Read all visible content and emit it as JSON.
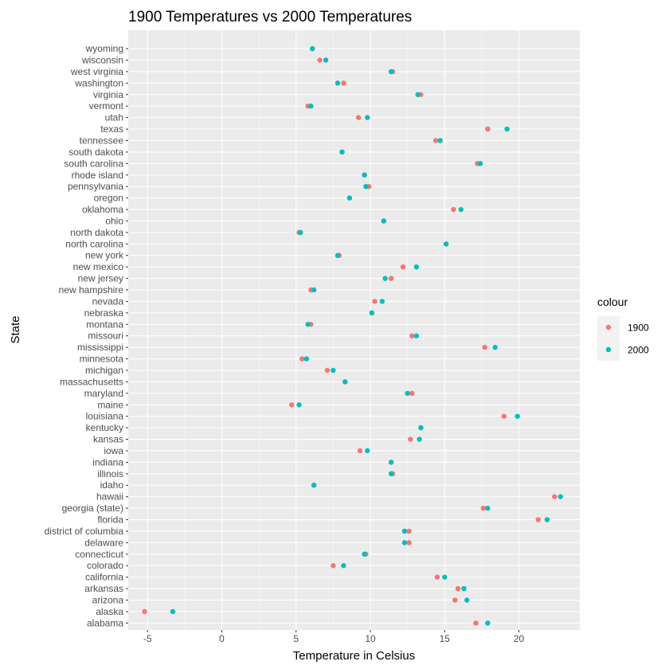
{
  "chart_data": {
    "type": "scatter",
    "title": "1900 Temperatures vs 2000 Temperatures",
    "xlabel": "Temperature in Celsius",
    "ylabel": "State",
    "xlim": [
      -6.3,
      24.1
    ],
    "xticks": [
      -5,
      0,
      5,
      10,
      15,
      20
    ],
    "grid": true,
    "legend": {
      "title": "colour",
      "position": "right"
    },
    "categories": [
      "alabama",
      "alaska",
      "arizona",
      "arkansas",
      "california",
      "colorado",
      "connecticut",
      "delaware",
      "district of columbia",
      "florida",
      "georgia (state)",
      "hawaii",
      "idaho",
      "illinois",
      "indiana",
      "iowa",
      "kansas",
      "kentucky",
      "louisiana",
      "maine",
      "maryland",
      "massachusetts",
      "michigan",
      "minnesota",
      "mississippi",
      "missouri",
      "montana",
      "nebraska",
      "nevada",
      "new hampshire",
      "new jersey",
      "new mexico",
      "new york",
      "north carolina",
      "north dakota",
      "ohio",
      "oklahoma",
      "oregon",
      "pennsylvania",
      "rhode island",
      "south carolina",
      "south dakota",
      "tennessee",
      "texas",
      "utah",
      "vermont",
      "virginia",
      "washington",
      "west virginia",
      "wisconsin",
      "wyoming"
    ],
    "series": [
      {
        "name": "1900",
        "color": "#F8766D",
        "values": [
          17.1,
          -5.2,
          15.7,
          15.9,
          14.5,
          7.5,
          9.7,
          12.6,
          12.6,
          21.3,
          17.6,
          22.4,
          6.2,
          11.5,
          11.4,
          9.3,
          12.7,
          13.4,
          19.0,
          4.7,
          12.8,
          8.3,
          7.1,
          5.4,
          17.7,
          12.8,
          6.0,
          10.1,
          10.3,
          6.0,
          11.4,
          12.2,
          7.9,
          15.1,
          5.2,
          10.9,
          15.6,
          8.6,
          9.9,
          9.6,
          17.2,
          8.1,
          14.4,
          17.9,
          9.2,
          5.8,
          13.4,
          8.2,
          11.5,
          6.6,
          6.1
        ]
      },
      {
        "name": "2000",
        "color": "#00BFC4",
        "values": [
          17.9,
          -3.3,
          16.5,
          16.3,
          15.0,
          8.2,
          9.6,
          12.3,
          12.3,
          21.9,
          17.9,
          22.8,
          6.2,
          11.4,
          11.4,
          9.8,
          13.3,
          13.4,
          19.9,
          5.2,
          12.5,
          8.3,
          7.5,
          5.7,
          18.4,
          13.1,
          5.8,
          10.1,
          10.8,
          6.2,
          11.0,
          13.1,
          7.8,
          15.1,
          5.3,
          10.9,
          16.1,
          8.6,
          9.7,
          9.6,
          17.4,
          8.1,
          14.7,
          19.2,
          9.8,
          6.0,
          13.2,
          7.8,
          11.4,
          7.0,
          6.1
        ]
      }
    ]
  }
}
